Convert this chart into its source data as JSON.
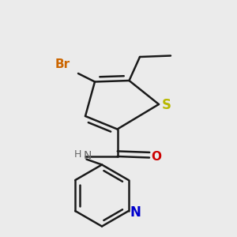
{
  "background_color": "#ebebeb",
  "bond_color": "#1a1a1a",
  "bond_width": 1.8,
  "S_color": "#b8b800",
  "N_color": "#0000cc",
  "O_color": "#cc0000",
  "Br_color": "#cc6600",
  "H_color": "#666666",
  "font_size": 10,
  "figsize": [
    3.0,
    3.0
  ],
  "dpi": 100,
  "xlim": [
    0.0,
    1.0
  ],
  "ylim": [
    0.0,
    1.0
  ]
}
